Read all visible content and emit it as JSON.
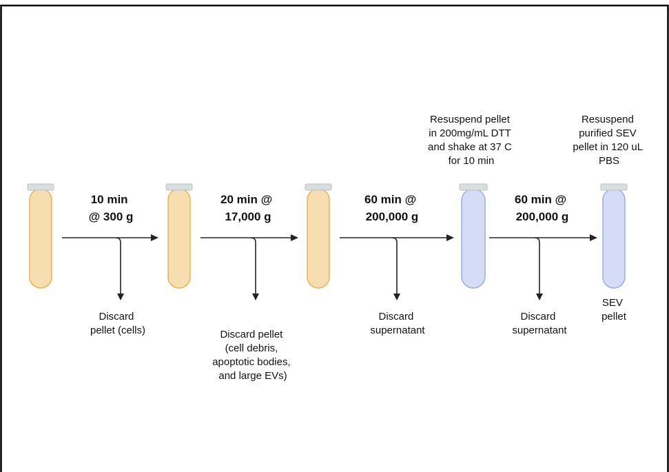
{
  "colors": {
    "amber_tube_fill": "#f7deb0",
    "amber_tube_edge": "#e4b455",
    "blue_tube_fill": "#d4dcf6",
    "blue_tube_edge": "#9aaae6",
    "tube_cap": "#d9dedf",
    "arrow": "#222222"
  },
  "icons": {
    "amber_tube": "test-tube-icon",
    "blue_tube": "test-tube-icon"
  },
  "steps": [
    {
      "label_lines": [
        "10 min",
        "@ 300 g"
      ],
      "discard_lines": [
        "Discard",
        "pellet (cells)"
      ]
    },
    {
      "label_lines": [
        "20 min @",
        "17,000 g"
      ],
      "discard_lines": [
        "Discard pellet",
        "(cell debris,",
        "apoptotic bodies,",
        "and large EVs)"
      ]
    },
    {
      "label_lines": [
        "60 min @",
        "200,000 g"
      ],
      "discard_lines": [
        "Discard",
        "supernatant"
      ]
    },
    {
      "label_lines": [
        "60 min @",
        "200,000 g"
      ],
      "discard_lines": [
        "Discard",
        "supernatant"
      ]
    }
  ],
  "notes": [
    {
      "lines": [
        "Resuspend pellet",
        "in 200mg/mL DTT",
        "and shake at 37 C",
        "for 10 min"
      ]
    },
    {
      "lines": [
        "Resuspend",
        "purified SEV",
        "pellet in 120 uL",
        "PBS"
      ]
    }
  ],
  "final_label": [
    "SEV",
    "pellet"
  ]
}
